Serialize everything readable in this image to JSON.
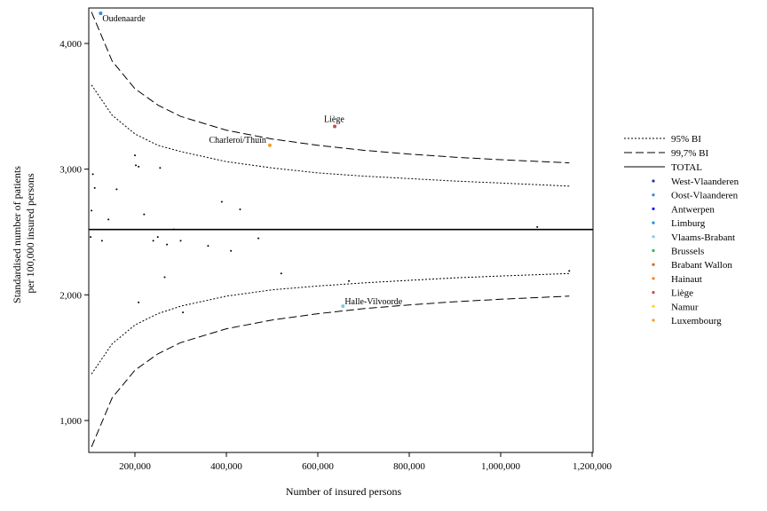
{
  "chart_data": {
    "type": "scatter",
    "xlabel": "Number of insured persons",
    "ylabel_lines": [
      "Standardised number of patients",
      "per 100,000 insured persons"
    ],
    "xlim": [
      100000,
      1200000
    ],
    "ylim": [
      770,
      4300
    ],
    "x_ticks": [
      200000,
      400000,
      600000,
      800000,
      1000000,
      1200000
    ],
    "x_tick_labels": [
      "200,000",
      "400,000",
      "600,000",
      "800,000",
      "1,000,000",
      "1,200,000"
    ],
    "y_ticks": [
      1000,
      2000,
      3000,
      4000
    ],
    "y_tick_labels": [
      "1,000",
      "2,000",
      "3,000",
      "4,000"
    ],
    "total_value": 2520,
    "control_limits": {
      "x": [
        105000,
        150000,
        200000,
        250000,
        300000,
        400000,
        500000,
        600000,
        700000,
        800000,
        900000,
        1000000,
        1150000
      ],
      "upper_95": [
        3670,
        3430,
        3280,
        3190,
        3140,
        3060,
        3010,
        2970,
        2945,
        2925,
        2905,
        2890,
        2865
      ],
      "lower_95": [
        1370,
        1610,
        1760,
        1850,
        1910,
        1990,
        2040,
        2070,
        2095,
        2115,
        2135,
        2150,
        2170
      ],
      "upper_997": [
        4250,
        3860,
        3640,
        3510,
        3420,
        3310,
        3240,
        3190,
        3150,
        3120,
        3095,
        3075,
        3050
      ],
      "lower_997": [
        790,
        1180,
        1400,
        1530,
        1620,
        1730,
        1800,
        1850,
        1890,
        1920,
        1945,
        1965,
        1990
      ]
    },
    "points": [
      {
        "x": 105000,
        "y": 2670
      },
      {
        "x": 108000,
        "y": 2960
      },
      {
        "x": 112000,
        "y": 2850
      },
      {
        "x": 103000,
        "y": 2460
      },
      {
        "x": 128000,
        "y": 2430
      },
      {
        "x": 142000,
        "y": 2600
      },
      {
        "x": 160000,
        "y": 2840
      },
      {
        "x": 200000,
        "y": 3110
      },
      {
        "x": 202000,
        "y": 3030
      },
      {
        "x": 208000,
        "y": 3020
      },
      {
        "x": 208000,
        "y": 1940
      },
      {
        "x": 220000,
        "y": 2640
      },
      {
        "x": 240000,
        "y": 2430
      },
      {
        "x": 250000,
        "y": 2460
      },
      {
        "x": 255000,
        "y": 3010
      },
      {
        "x": 265000,
        "y": 2140
      },
      {
        "x": 270000,
        "y": 2400
      },
      {
        "x": 285000,
        "y": 2520
      },
      {
        "x": 300000,
        "y": 2430
      },
      {
        "x": 305000,
        "y": 1860
      },
      {
        "x": 360000,
        "y": 2390
      },
      {
        "x": 390000,
        "y": 2740
      },
      {
        "x": 410000,
        "y": 2350
      },
      {
        "x": 430000,
        "y": 2680
      },
      {
        "x": 470000,
        "y": 2450
      },
      {
        "x": 520000,
        "y": 2170
      },
      {
        "x": 668000,
        "y": 2110
      },
      {
        "x": 1080000,
        "y": 2540
      },
      {
        "x": 1150000,
        "y": 2190
      },
      {
        "x": 125000,
        "y": 4240,
        "color": "#3b84d6",
        "label": "Oudenaarde"
      },
      {
        "x": 495000,
        "y": 3190,
        "color": "#f0a020",
        "label": "Charleroi/Thuin"
      },
      {
        "x": 637000,
        "y": 3340,
        "color": "#c0504d",
        "label": "Liège"
      },
      {
        "x": 655000,
        "y": 1910,
        "color": "#7ec8e3",
        "label": "Halle-Vilvoorde"
      }
    ]
  },
  "legend": {
    "lines": [
      {
        "label": "95% BI",
        "style": "dotted"
      },
      {
        "label": "99,7% BI",
        "style": "dashed"
      },
      {
        "label": "TOTAL",
        "style": "solid"
      }
    ],
    "points": [
      {
        "label": "West-Vlaanderen",
        "color": "#1f3a93"
      },
      {
        "label": "Oost-Vlaanderen",
        "color": "#3b84d6"
      },
      {
        "label": "Antwerpen",
        "color": "#1a1aff"
      },
      {
        "label": "Limburg",
        "color": "#1e90d6"
      },
      {
        "label": "Vlaams-Brabant",
        "color": "#7ec8e3"
      },
      {
        "label": "Brussels",
        "color": "#2db84b"
      },
      {
        "label": "Brabant Wallon",
        "color": "#d2691e"
      },
      {
        "label": "Hainaut",
        "color": "#f58220"
      },
      {
        "label": "Liège",
        "color": "#c0504d"
      },
      {
        "label": "Namur",
        "color": "#ffd700"
      },
      {
        "label": "Luxembourg",
        "color": "#f0a020"
      }
    ]
  }
}
